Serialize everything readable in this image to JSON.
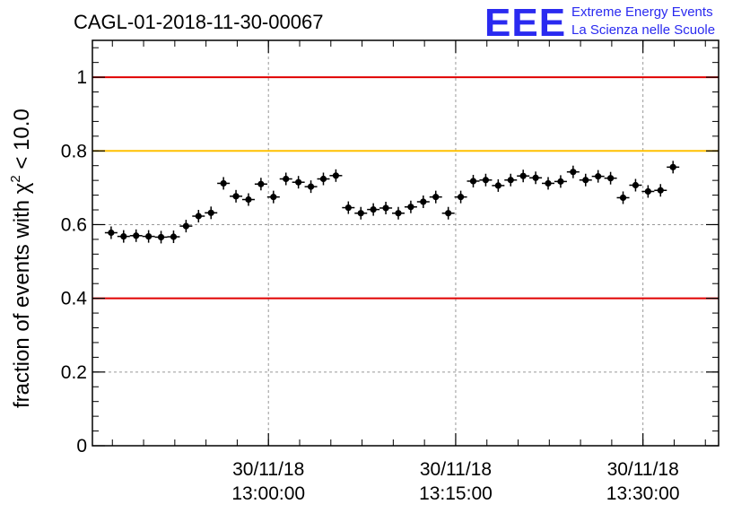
{
  "chart_data": {
    "type": "scatter",
    "title": "CAGL-01-2018-11-30-00067",
    "ylabel_prefix": "fraction of events with ",
    "ylabel_symbol": "χ",
    "ylabel_sup": "2",
    "ylabel_suffix": " < 10.0",
    "xlim_minutes": [
      12.75,
      13.6
    ],
    "ylim": [
      0,
      1.1
    ],
    "grid": true,
    "x_ticks": [
      {
        "date": "30/11/18",
        "time": "13:00:00",
        "hour": 13.0
      },
      {
        "date": "30/11/18",
        "time": "13:15:00",
        "hour": 13.25
      },
      {
        "date": "30/11/18",
        "time": "13:30:00",
        "hour": 13.5
      }
    ],
    "y_ticks": [
      "0",
      "0.2",
      "0.4",
      "0.6",
      "0.8",
      "1"
    ],
    "y_tick_values": [
      0,
      0.2,
      0.4,
      0.6,
      0.8,
      1.0
    ],
    "reference_lines": [
      {
        "y": 1.0,
        "color": "#e00000"
      },
      {
        "y": 0.8,
        "color": "#ffc000"
      },
      {
        "y": 0.4,
        "color": "#e00000"
      }
    ],
    "point_color": "#000000",
    "x_hours_start": 12.79,
    "x_hours_step": 0.01667,
    "values": [
      0.578,
      0.568,
      0.57,
      0.568,
      0.566,
      0.567,
      0.596,
      0.623,
      0.632,
      0.712,
      0.677,
      0.668,
      0.71,
      0.675,
      0.724,
      0.715,
      0.703,
      0.724,
      0.733,
      0.646,
      0.631,
      0.641,
      0.645,
      0.631,
      0.648,
      0.662,
      0.675,
      0.631,
      0.675,
      0.718,
      0.721,
      0.706,
      0.721,
      0.732,
      0.727,
      0.712,
      0.717,
      0.743,
      0.721,
      0.731,
      0.726,
      0.673,
      0.707,
      0.69,
      0.693,
      0.756
    ]
  },
  "logo": {
    "big": "EEE",
    "line1": "Extreme Energy Events",
    "line2": "La Scienza nelle Scuole"
  }
}
